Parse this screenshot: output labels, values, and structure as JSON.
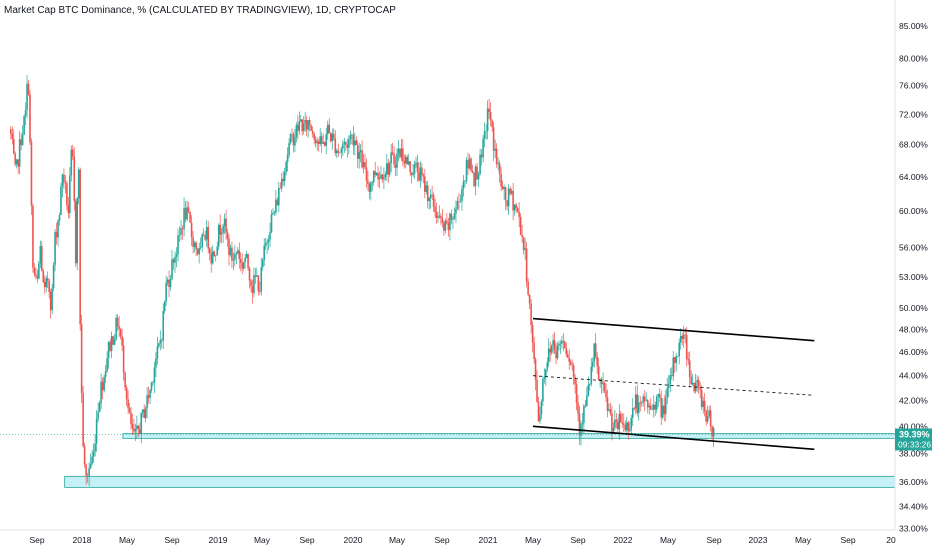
{
  "chart_data": {
    "type": "candlestick",
    "title": "Market Cap BTC Dominance, % (CALCULATED BY TRADINGVIEW), 1D, CRYPTOCAP",
    "y_axis": {
      "scale": "log",
      "ticks": [
        "85.00%",
        "80.00%",
        "76.00%",
        "72.00%",
        "68.00%",
        "64.00%",
        "60.00%",
        "56.00%",
        "53.00%",
        "50.00%",
        "48.00%",
        "46.00%",
        "44.00%",
        "42.00%",
        "40.00%",
        "38.00%",
        "36.00%",
        "34.40%",
        "33.00%"
      ],
      "tick_values": [
        85,
        80,
        76,
        72,
        68,
        64,
        60,
        56,
        53,
        50,
        48,
        46,
        44,
        42,
        40,
        38,
        36,
        34.4,
        33
      ],
      "range": [
        32.9,
        86
      ]
    },
    "x_axis": {
      "ticks": [
        "Sep",
        "2018",
        "May",
        "Sep",
        "2019",
        "May",
        "Sep",
        "2020",
        "May",
        "Sep",
        "2021",
        "May",
        "Sep",
        "2022",
        "May",
        "Sep",
        "2023",
        "May",
        "Sep",
        "20"
      ],
      "tick_dates": [
        "2017-09",
        "2018-01",
        "2018-05",
        "2018-09",
        "2019-01",
        "2019-05",
        "2019-09",
        "2020-01",
        "2020-05",
        "2020-09",
        "2021-01",
        "2021-05",
        "2021-09",
        "2022-01",
        "2022-05",
        "2022-09",
        "2023-01",
        "2023-05",
        "2023-09",
        "2024-01"
      ]
    },
    "colors": {
      "up": "#26a69a",
      "down": "#ef5350",
      "trendline": "#000000",
      "zone_fill": "#b2ebf2",
      "zone_border": "#26a69a",
      "price_badge": "#26a69a"
    },
    "last_price": {
      "label": "39.39%",
      "value": 39.39,
      "countdown": "09:33:26"
    },
    "price_path": [
      [
        "2017-06-20",
        70
      ],
      [
        "2017-07-05",
        64
      ],
      [
        "2017-07-20",
        69
      ],
      [
        "2017-08-01",
        72
      ],
      [
        "2017-08-08",
        78
      ],
      [
        "2017-08-20",
        54
      ],
      [
        "2017-09-01",
        52
      ],
      [
        "2017-09-10",
        56
      ],
      [
        "2017-09-20",
        51
      ],
      [
        "2017-10-01",
        53
      ],
      [
        "2017-10-10",
        50
      ],
      [
        "2017-10-20",
        57
      ],
      [
        "2017-11-01",
        60
      ],
      [
        "2017-11-10",
        65
      ],
      [
        "2017-11-15",
        63
      ],
      [
        "2017-11-25",
        60
      ],
      [
        "2017-12-05",
        68
      ],
      [
        "2017-12-10",
        62
      ],
      [
        "2017-12-15",
        55
      ],
      [
        "2017-12-22",
        68
      ],
      [
        "2017-12-28",
        45
      ],
      [
        "2018-01-05",
        38
      ],
      [
        "2018-01-10",
        36
      ],
      [
        "2018-01-20",
        37
      ],
      [
        "2018-02-01",
        38
      ],
      [
        "2018-02-10",
        41
      ],
      [
        "2018-02-20",
        43
      ],
      [
        "2018-03-01",
        44
      ],
      [
        "2018-03-10",
        46
      ],
      [
        "2018-03-20",
        47
      ],
      [
        "2018-04-01",
        48
      ],
      [
        "2018-04-05",
        49
      ],
      [
        "2018-04-15",
        47
      ],
      [
        "2018-04-25",
        44
      ],
      [
        "2018-05-05",
        41
      ],
      [
        "2018-05-15",
        39.5
      ],
      [
        "2018-05-25",
        39.2
      ],
      [
        "2018-06-05",
        40
      ],
      [
        "2018-06-15",
        41
      ],
      [
        "2018-06-25",
        42
      ],
      [
        "2018-07-05",
        43
      ],
      [
        "2018-07-15",
        45
      ],
      [
        "2018-07-25",
        46
      ],
      [
        "2018-08-05",
        48
      ],
      [
        "2018-08-15",
        52
      ],
      [
        "2018-08-25",
        53
      ],
      [
        "2018-09-05",
        55
      ],
      [
        "2018-09-15",
        56
      ],
      [
        "2018-09-25",
        58
      ],
      [
        "2018-10-05",
        60
      ],
      [
        "2018-10-15",
        59
      ],
      [
        "2018-10-25",
        57
      ],
      [
        "2018-11-05",
        56
      ],
      [
        "2018-11-15",
        55
      ],
      [
        "2018-11-25",
        58
      ],
      [
        "2018-12-05",
        57
      ],
      [
        "2018-12-15",
        55
      ],
      [
        "2018-12-25",
        56
      ],
      [
        "2019-01-05",
        58
      ],
      [
        "2019-01-15",
        59
      ],
      [
        "2019-01-25",
        57
      ],
      [
        "2019-02-05",
        55
      ],
      [
        "2019-02-15",
        55
      ],
      [
        "2019-02-25",
        56
      ],
      [
        "2019-03-05",
        54
      ],
      [
        "2019-03-15",
        55
      ],
      [
        "2019-03-25",
        54
      ],
      [
        "2019-04-05",
        52
      ],
      [
        "2019-04-15",
        53
      ],
      [
        "2019-04-25",
        52
      ],
      [
        "2019-05-05",
        55
      ],
      [
        "2019-05-15",
        57
      ],
      [
        "2019-05-25",
        59
      ],
      [
        "2019-06-05",
        60
      ],
      [
        "2019-06-15",
        62
      ],
      [
        "2019-06-25",
        64
      ],
      [
        "2019-07-05",
        66
      ],
      [
        "2019-07-15",
        68
      ],
      [
        "2019-07-25",
        69
      ],
      [
        "2019-08-05",
        70
      ],
      [
        "2019-08-15",
        71
      ],
      [
        "2019-08-25",
        70
      ],
      [
        "2019-09-05",
        71
      ],
      [
        "2019-09-15",
        70
      ],
      [
        "2019-09-25",
        69
      ],
      [
        "2019-10-05",
        68
      ],
      [
        "2019-10-15",
        68
      ],
      [
        "2019-10-25",
        70
      ],
      [
        "2019-11-05",
        69
      ],
      [
        "2019-11-15",
        68
      ],
      [
        "2019-11-25",
        67
      ],
      [
        "2019-12-05",
        68
      ],
      [
        "2019-12-15",
        68
      ],
      [
        "2019-12-25",
        69
      ],
      [
        "2020-01-05",
        69
      ],
      [
        "2020-01-15",
        67
      ],
      [
        "2020-01-25",
        66
      ],
      [
        "2020-02-05",
        64
      ],
      [
        "2020-02-15",
        63
      ],
      [
        "2020-02-25",
        64
      ],
      [
        "2020-03-05",
        65
      ],
      [
        "2020-03-15",
        64
      ],
      [
        "2020-03-25",
        65
      ],
      [
        "2020-04-05",
        65
      ],
      [
        "2020-04-15",
        66
      ],
      [
        "2020-04-25",
        66
      ],
      [
        "2020-05-05",
        67
      ],
      [
        "2020-05-15",
        67
      ],
      [
        "2020-05-25",
        66
      ],
      [
        "2020-06-05",
        65
      ],
      [
        "2020-06-15",
        65
      ],
      [
        "2020-06-25",
        65
      ],
      [
        "2020-07-05",
        64
      ],
      [
        "2020-07-15",
        63
      ],
      [
        "2020-07-25",
        62
      ],
      [
        "2020-08-05",
        61
      ],
      [
        "2020-08-15",
        60
      ],
      [
        "2020-08-25",
        59
      ],
      [
        "2020-09-05",
        58
      ],
      [
        "2020-09-15",
        58
      ],
      [
        "2020-09-25",
        59
      ],
      [
        "2020-10-05",
        60
      ],
      [
        "2020-10-15",
        61
      ],
      [
        "2020-10-25",
        63
      ],
      [
        "2020-11-05",
        65
      ],
      [
        "2020-11-15",
        66
      ],
      [
        "2020-11-25",
        64
      ],
      [
        "2020-12-05",
        65
      ],
      [
        "2020-12-15",
        66
      ],
      [
        "2020-12-25",
        70
      ],
      [
        "2021-01-03",
        73
      ],
      [
        "2021-01-10",
        70
      ],
      [
        "2021-01-20",
        67
      ],
      [
        "2021-02-01",
        64
      ],
      [
        "2021-02-10",
        62
      ],
      [
        "2021-02-20",
        61
      ],
      [
        "2021-03-01",
        62
      ],
      [
        "2021-03-10",
        61
      ],
      [
        "2021-03-20",
        60
      ],
      [
        "2021-03-30",
        58
      ],
      [
        "2021-04-10",
        55
      ],
      [
        "2021-04-20",
        51
      ],
      [
        "2021-05-01",
        46
      ],
      [
        "2021-05-10",
        43
      ],
      [
        "2021-05-18",
        40
      ],
      [
        "2021-05-25",
        43
      ],
      [
        "2021-06-05",
        45
      ],
      [
        "2021-06-15",
        46
      ],
      [
        "2021-06-25",
        47
      ],
      [
        "2021-07-05",
        46
      ],
      [
        "2021-07-15",
        47
      ],
      [
        "2021-07-25",
        47
      ],
      [
        "2021-08-05",
        46
      ],
      [
        "2021-08-15",
        45
      ],
      [
        "2021-08-25",
        43
      ],
      [
        "2021-09-05",
        40
      ],
      [
        "2021-09-15",
        41
      ],
      [
        "2021-09-25",
        42
      ],
      [
        "2021-10-05",
        44
      ],
      [
        "2021-10-15",
        46
      ],
      [
        "2021-10-25",
        44
      ],
      [
        "2021-11-05",
        43
      ],
      [
        "2021-11-15",
        42
      ],
      [
        "2021-11-25",
        41
      ],
      [
        "2021-12-05",
        40
      ],
      [
        "2021-12-15",
        39.8
      ],
      [
        "2021-12-25",
        40.5
      ],
      [
        "2022-01-05",
        40
      ],
      [
        "2022-01-15",
        40
      ],
      [
        "2022-01-25",
        41
      ],
      [
        "2022-02-05",
        42
      ],
      [
        "2022-02-15",
        41
      ],
      [
        "2022-02-25",
        42
      ],
      [
        "2022-03-05",
        42
      ],
      [
        "2022-03-15",
        41
      ],
      [
        "2022-03-25",
        42
      ],
      [
        "2022-04-05",
        42
      ],
      [
        "2022-04-15",
        41
      ],
      [
        "2022-04-25",
        42
      ],
      [
        "2022-05-05",
        43
      ],
      [
        "2022-05-15",
        45
      ],
      [
        "2022-05-25",
        46
      ],
      [
        "2022-06-05",
        47
      ],
      [
        "2022-06-12",
        48
      ],
      [
        "2022-06-20",
        46
      ],
      [
        "2022-07-01",
        44
      ],
      [
        "2022-07-10",
        43
      ],
      [
        "2022-07-20",
        43
      ],
      [
        "2022-08-01",
        42
      ],
      [
        "2022-08-10",
        41
      ],
      [
        "2022-08-20",
        40.5
      ],
      [
        "2022-09-01",
        39.5
      ]
    ],
    "trendlines": [
      {
        "name": "upper",
        "style": "solid",
        "from": [
          "2021-05-01",
          49
        ],
        "to": [
          "2023-06-01",
          47
        ]
      },
      {
        "name": "middle",
        "style": "dashed",
        "from": [
          "2021-05-01",
          44
        ],
        "to": [
          "2023-06-01",
          42.4
        ]
      },
      {
        "name": "lower",
        "style": "solid",
        "from": [
          "2021-05-01",
          40
        ],
        "to": [
          "2023-06-01",
          38.3
        ]
      }
    ],
    "zones": [
      {
        "name": "support-zone-upper",
        "from": "2018-04-20",
        "low": 39.1,
        "high": 39.45
      },
      {
        "name": "support-zone-lower",
        "from": "2017-11-15",
        "low": 35.65,
        "high": 36.4
      }
    ]
  }
}
